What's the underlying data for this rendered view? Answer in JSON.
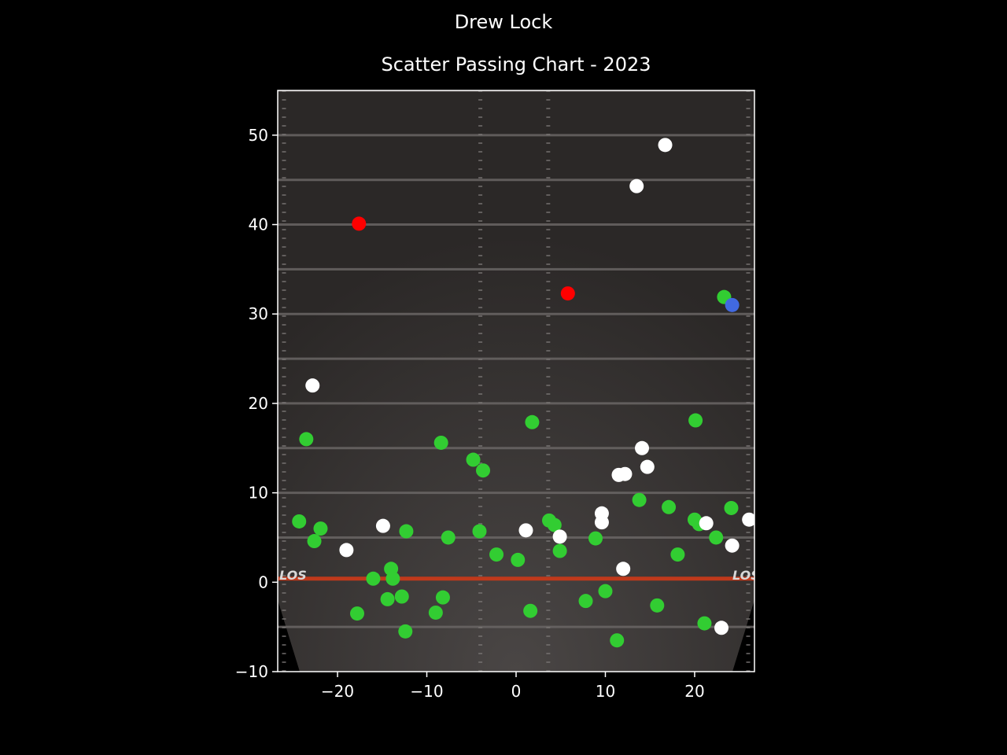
{
  "figure": {
    "suptitle": "Drew Lock",
    "title": "Scatter Passing Chart - 2023",
    "background": "#000000"
  },
  "chart_data": {
    "type": "scatter",
    "title": "Scatter Passing Chart - 2023",
    "xlabel": "",
    "ylabel": "",
    "xlim": [
      -26.7,
      26.7
    ],
    "ylim": [
      -10,
      55
    ],
    "xticks": [
      -20,
      -10,
      0,
      10,
      20
    ],
    "yticks": [
      -10,
      0,
      10,
      20,
      30,
      40,
      50
    ],
    "grid": false,
    "legend": "none",
    "background_image": "football-field",
    "field_markings": {
      "line_of_scrimmage_label": "LOS",
      "line_of_scrimmage_color": "#c0391b"
    },
    "series": [
      {
        "color": "#32cd32",
        "points": [
          [
            -24.3,
            6.8
          ],
          [
            -23.5,
            16
          ],
          [
            -22.6,
            4.6
          ],
          [
            -21.9,
            6
          ],
          [
            -17.8,
            -3.5
          ],
          [
            -16.0,
            0.4
          ],
          [
            -14.4,
            -1.9
          ],
          [
            -14.0,
            1.5
          ],
          [
            -13.8,
            0.4
          ],
          [
            -12.8,
            -1.6
          ],
          [
            -12.4,
            -5.5
          ],
          [
            -12.3,
            5.7
          ],
          [
            -9.0,
            -3.4
          ],
          [
            -8.4,
            15.6
          ],
          [
            -8.2,
            -1.7
          ],
          [
            -7.6,
            5.0
          ],
          [
            -4.8,
            13.7
          ],
          [
            -4.1,
            5.7
          ],
          [
            -3.7,
            12.5
          ],
          [
            -2.2,
            3.1
          ],
          [
            0.2,
            2.5
          ],
          [
            1.6,
            -3.2
          ],
          [
            1.8,
            17.9
          ],
          [
            3.7,
            6.9
          ],
          [
            4.3,
            6.4
          ],
          [
            4.9,
            3.5
          ],
          [
            7.8,
            -2.1
          ],
          [
            8.9,
            4.9
          ],
          [
            10.0,
            -1.0
          ],
          [
            11.3,
            -6.5
          ],
          [
            13.8,
            9.2
          ],
          [
            15.8,
            -2.6
          ],
          [
            17.1,
            8.4
          ],
          [
            18.1,
            3.1
          ],
          [
            20.0,
            7.0
          ],
          [
            20.1,
            18.1
          ],
          [
            20.5,
            6.5
          ],
          [
            21.1,
            -4.6
          ],
          [
            22.4,
            5.0
          ],
          [
            23.3,
            31.9
          ],
          [
            24.1,
            8.3
          ]
        ]
      },
      {
        "color": "#ffffff",
        "points": [
          [
            -22.8,
            22
          ],
          [
            -19.0,
            3.6
          ],
          [
            -14.9,
            6.3
          ],
          [
            1.1,
            5.8
          ],
          [
            4.9,
            5.1
          ],
          [
            9.6,
            6.7
          ],
          [
            9.6,
            7.7
          ],
          [
            11.5,
            12
          ],
          [
            12.0,
            1.5
          ],
          [
            12.2,
            12.1
          ],
          [
            13.5,
            44.3
          ],
          [
            14.1,
            15
          ],
          [
            14.7,
            12.9
          ],
          [
            16.7,
            48.9
          ],
          [
            21.3,
            6.6
          ],
          [
            23.0,
            -5.1
          ],
          [
            24.2,
            4.1
          ],
          [
            26.1,
            7
          ]
        ]
      },
      {
        "color": "#ff0000",
        "points": [
          [
            -17.6,
            40.1
          ],
          [
            5.8,
            32.3
          ]
        ]
      },
      {
        "color": "#4169e1",
        "points": [
          [
            24.2,
            31.0
          ]
        ]
      }
    ]
  }
}
